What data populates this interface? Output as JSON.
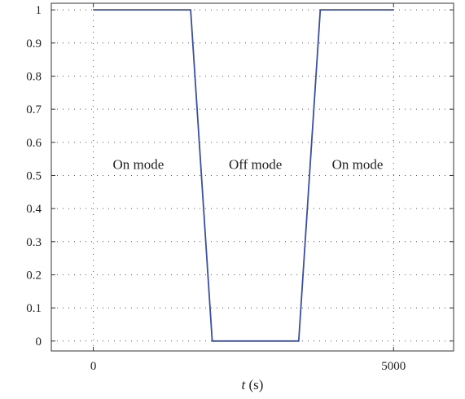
{
  "chart_data": {
    "type": "line",
    "title": "",
    "xlabel_var": "t",
    "xlabel_unit": " (s)",
    "ylabel": "",
    "xlim": [
      -700,
      6000
    ],
    "ylim": [
      -0.03,
      1.02
    ],
    "x_ticks": [
      0,
      5000
    ],
    "x_tick_labels": [
      "0",
      "5000"
    ],
    "x_grid": [
      0,
      5000
    ],
    "y_ticks": [
      0,
      0.1,
      0.2,
      0.3,
      0.4,
      0.5,
      0.6,
      0.7,
      0.8,
      0.9,
      1
    ],
    "y_tick_labels": [
      "0",
      "0.1",
      "0.2",
      "0.3",
      "0.4",
      "0.5",
      "0.6",
      "0.7",
      "0.8",
      "0.9",
      "1"
    ],
    "grid": true,
    "series": [
      {
        "color": "#3a4f9e",
        "x": [
          0,
          1620,
          1980,
          3420,
          3780,
          5000
        ],
        "y": [
          1,
          1,
          0,
          0,
          1,
          1
        ]
      }
    ],
    "annotations": [
      {
        "text": "On mode",
        "x": 750,
        "y": 0.52
      },
      {
        "text": "Off mode",
        "x": 2700,
        "y": 0.52
      },
      {
        "text": "On mode",
        "x": 4400,
        "y": 0.52
      }
    ]
  }
}
